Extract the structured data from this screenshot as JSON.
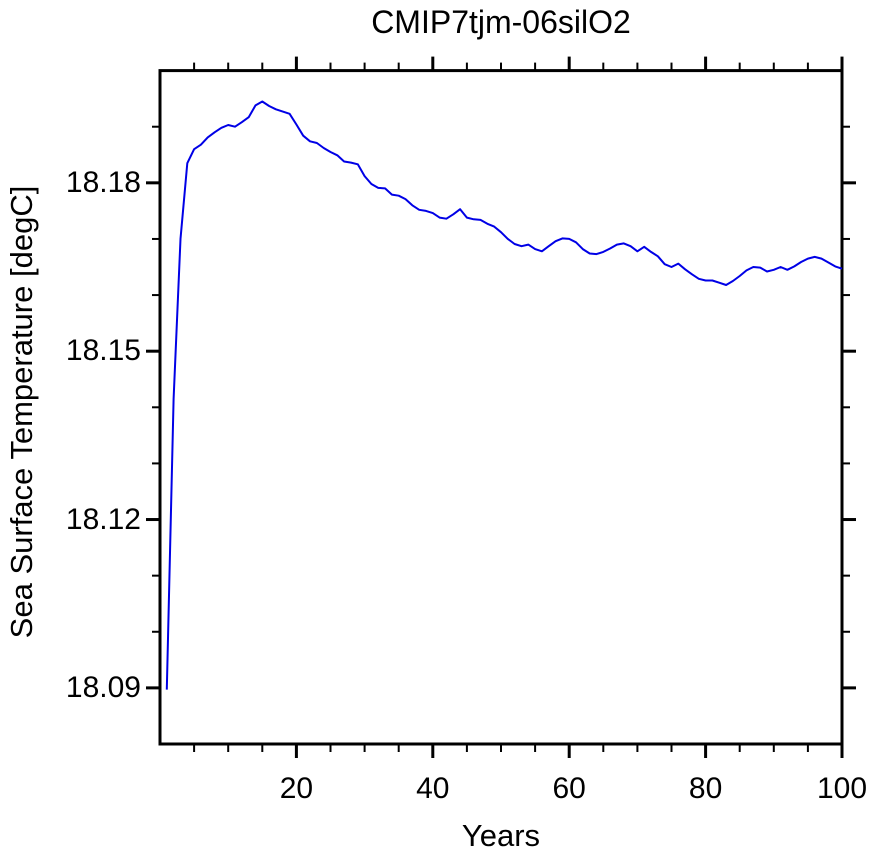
{
  "chart_data": {
    "type": "line",
    "title": "CMIP7tjm-06silO2",
    "xlabel": "Years",
    "ylabel": "Sea Surface Temperature [degC]",
    "xlim": [
      0,
      100
    ],
    "ylim": [
      18.08,
      18.2
    ],
    "grid": false,
    "legend": "none",
    "xticks_major": [
      20,
      40,
      60,
      80,
      100
    ],
    "xtick_labels": [
      "20",
      "40",
      "60",
      "80",
      "100"
    ],
    "xticks_minor": [
      5,
      10,
      15,
      25,
      30,
      35,
      45,
      50,
      55,
      65,
      70,
      75,
      85,
      90,
      95
    ],
    "yticks_major": [
      18.09,
      18.12,
      18.15,
      18.18
    ],
    "ytick_labels": [
      "18.09",
      "18.12",
      "18.15",
      "18.18"
    ],
    "yticks_minor": [
      18.1,
      18.11,
      18.13,
      18.14,
      18.16,
      18.17,
      18.19
    ],
    "line_color": "#0000e6",
    "axis_color": "#000000",
    "series": [
      {
        "name": "Sea Surface Temperature",
        "x": [
          1,
          2,
          3,
          4,
          5,
          6,
          7,
          8,
          9,
          10,
          11,
          12,
          13,
          14,
          15,
          16,
          17,
          18,
          19,
          20,
          21,
          22,
          23,
          24,
          25,
          26,
          27,
          28,
          29,
          30,
          31,
          32,
          33,
          34,
          35,
          36,
          37,
          38,
          39,
          40,
          41,
          42,
          43,
          44,
          45,
          46,
          47,
          48,
          49,
          50,
          51,
          52,
          53,
          54,
          55,
          56,
          57,
          58,
          59,
          60,
          61,
          62,
          63,
          64,
          65,
          66,
          67,
          68,
          69,
          70,
          71,
          72,
          73,
          74,
          75,
          76,
          77,
          78,
          79,
          80,
          81,
          82,
          83,
          84,
          85,
          86,
          87,
          88,
          89,
          90,
          91,
          92,
          93,
          94,
          95,
          96,
          97,
          98,
          99,
          100
        ],
        "values": [
          18.0897,
          18.1415,
          18.17,
          18.1835,
          18.186,
          18.1868,
          18.1881,
          18.189,
          18.1898,
          18.1903,
          18.19,
          18.1908,
          18.1917,
          18.1938,
          18.1945,
          18.1937,
          18.1931,
          18.1927,
          18.1923,
          18.1904,
          18.1884,
          18.1874,
          18.1871,
          18.1862,
          18.1855,
          18.1849,
          18.1838,
          18.1836,
          18.1833,
          18.1812,
          18.1798,
          18.1791,
          18.179,
          18.1779,
          18.1777,
          18.1771,
          18.176,
          18.1752,
          18.175,
          18.1746,
          18.1738,
          18.1736,
          18.1744,
          18.1753,
          18.1738,
          18.1735,
          18.1734,
          18.1727,
          18.1722,
          18.1712,
          18.17,
          18.1691,
          18.1687,
          18.169,
          18.1682,
          18.1678,
          18.1687,
          18.1696,
          18.1701,
          18.17,
          18.1694,
          18.1682,
          18.1674,
          18.1673,
          18.1677,
          18.1683,
          18.169,
          18.1692,
          18.1687,
          18.1678,
          18.1686,
          18.1677,
          18.1669,
          18.1655,
          18.165,
          18.1656,
          18.1646,
          18.1637,
          18.1629,
          18.1626,
          18.1626,
          18.1622,
          18.1618,
          18.1625,
          18.1634,
          18.1644,
          18.165,
          18.1649,
          18.1642,
          18.1645,
          18.165,
          18.1645,
          18.1651,
          18.1659,
          18.1665,
          18.1668,
          18.1665,
          18.1658,
          18.1651,
          18.1647
        ]
      }
    ]
  }
}
